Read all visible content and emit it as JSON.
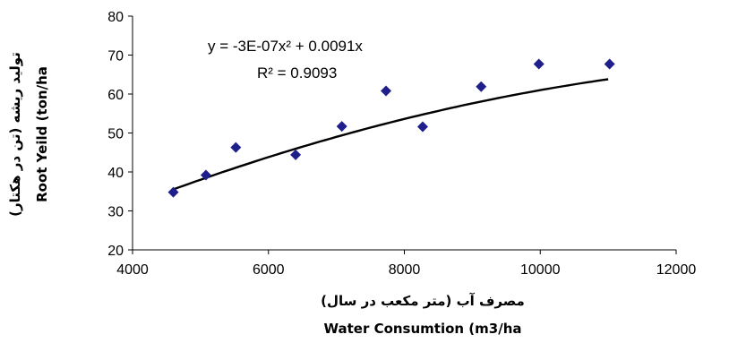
{
  "chart_data": {
    "type": "scatter",
    "x": [
      4600,
      5080,
      5520,
      6400,
      7080,
      7730,
      8270,
      9130,
      9980,
      11020
    ],
    "y": [
      34.8,
      39.2,
      46.3,
      44.4,
      51.7,
      60.8,
      51.6,
      61.9,
      67.7,
      67.7
    ],
    "marker_color": "#1f1f8c",
    "marker": "diamond",
    "trendline": {
      "type": "polynomial",
      "a": -3e-07,
      "b": 0.0091,
      "x_range": [
        4600,
        11000
      ],
      "color": "#000000",
      "equation_label": "y = -3E-07x² + 0.0091x",
      "r2_label": "R² = 0.9093"
    },
    "xlim": [
      4000,
      12000
    ],
    "ylim": [
      20,
      80
    ],
    "x_ticks": [
      "4000",
      "6000",
      "8000",
      "10000",
      "12000"
    ],
    "y_ticks": [
      "20",
      "30",
      "40",
      "50",
      "60",
      "70",
      "80"
    ],
    "xlabel_fa": "مصرف آب (متر مکعب در سال)",
    "xlabel": "Water Consumtion (m3/ha",
    "ylabel_fa": "تولید ریشه (تن در هکتار)",
    "ylabel": "Root Yeild (ton/ha",
    "grid": false,
    "legend": "none"
  }
}
